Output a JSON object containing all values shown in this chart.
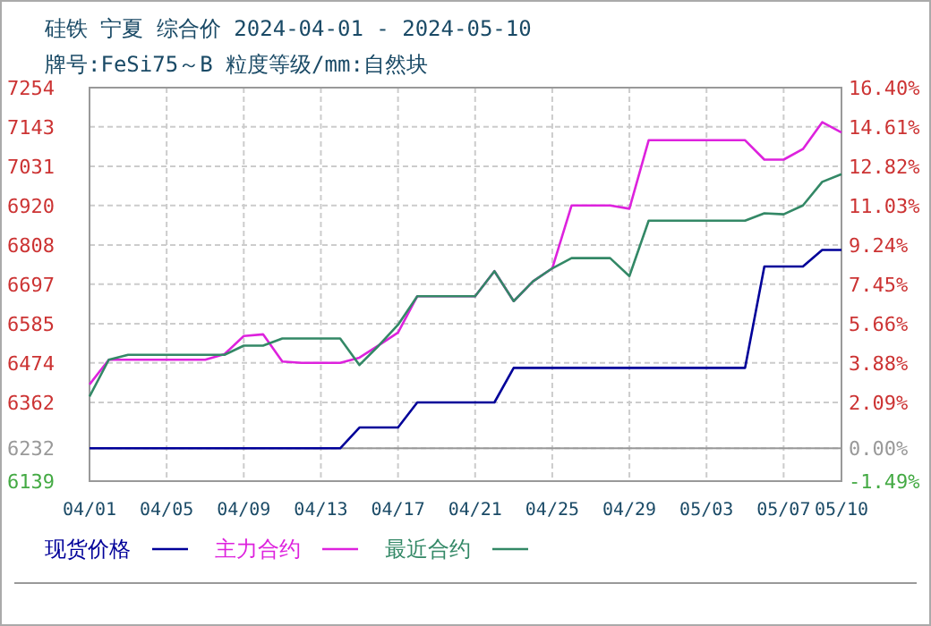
{
  "chart_data": {
    "type": "line",
    "title": "硅铁 宁夏 综合价 2024-04-01 - 2024-05-10",
    "subtitle": "牌号:FeSi75～B 粒度等级/mm:自然块",
    "xlim": [
      "2024-04-01",
      "2024-05-10"
    ],
    "xticks": [
      {
        "value": "2024-04-01",
        "label": "04/01"
      },
      {
        "value": "2024-04-05",
        "label": "04/05"
      },
      {
        "value": "2024-04-09",
        "label": "04/09"
      },
      {
        "value": "2024-04-13",
        "label": "04/13"
      },
      {
        "value": "2024-04-17",
        "label": "04/17"
      },
      {
        "value": "2024-04-21",
        "label": "04/21"
      },
      {
        "value": "2024-04-25",
        "label": "04/25"
      },
      {
        "value": "2024-04-29",
        "label": "04/29"
      },
      {
        "value": "2024-05-03",
        "label": "05/03"
      },
      {
        "value": "2024-05-07",
        "label": "05/07"
      },
      {
        "value": "2024-05-10",
        "label": "05/10"
      }
    ],
    "ylim": [
      6139,
      7254
    ],
    "yticks": [
      6139,
      6232,
      6362,
      6474,
      6585,
      6697,
      6808,
      6920,
      7031,
      7143,
      7254
    ],
    "y2lim": [
      -1.49,
      16.4
    ],
    "y2ticks": [
      {
        "value": -1.49,
        "label": "-1.49%"
      },
      {
        "value": 0,
        "label": "0.00%"
      },
      {
        "value": 2.09,
        "label": "2.09%"
      },
      {
        "value": 3.88,
        "label": "3.88%"
      },
      {
        "value": 5.66,
        "label": "5.66%"
      },
      {
        "value": 7.45,
        "label": "7.45%"
      },
      {
        "value": 9.24,
        "label": "9.24%"
      },
      {
        "value": 11.03,
        "label": "11.03%"
      },
      {
        "value": 12.82,
        "label": "12.82%"
      },
      {
        "value": 14.61,
        "label": "14.61%"
      },
      {
        "value": 16.4,
        "label": "16.40%"
      }
    ],
    "ref_lines": [
      {
        "axis": "y",
        "value": 6232,
        "color": "#999999"
      }
    ],
    "grid": true,
    "legend": "bottom",
    "marker": "none",
    "line_style": "solid",
    "series": [
      {
        "name": "现货价格",
        "color": "#000099",
        "x": [
          "2024-04-01",
          "2024-04-14",
          "2024-04-15",
          "2024-04-17",
          "2024-04-18",
          "2024-04-22",
          "2024-04-23",
          "2024-05-05",
          "2024-05-06",
          "2024-05-08",
          "2024-05-09",
          "2024-05-10"
        ],
        "values": [
          6232,
          6232,
          6291,
          6291,
          6362,
          6362,
          6460,
          6460,
          6747,
          6747,
          6794,
          6794
        ]
      },
      {
        "name": "主力合约",
        "color": "#dd22dd",
        "x": [
          "2024-04-01",
          "2024-04-02",
          "2024-04-07",
          "2024-04-08",
          "2024-04-09",
          "2024-04-10",
          "2024-04-11",
          "2024-04-12",
          "2024-04-14",
          "2024-04-15",
          "2024-04-16",
          "2024-04-17",
          "2024-04-18",
          "2024-04-21",
          "2024-04-22",
          "2024-04-23",
          "2024-04-24",
          "2024-04-25",
          "2024-04-26",
          "2024-04-28",
          "2024-04-29",
          "2024-04-30",
          "2024-05-05",
          "2024-05-06",
          "2024-05-07",
          "2024-05-08",
          "2024-05-09",
          "2024-05-10"
        ],
        "values": [
          6413,
          6483,
          6483,
          6499,
          6550,
          6555,
          6478,
          6474,
          6474,
          6489,
          6524,
          6560,
          6663,
          6663,
          6734,
          6649,
          6705,
          6742,
          6920,
          6920,
          6911,
          7105,
          7105,
          7050,
          7050,
          7080,
          7156,
          7127
        ]
      },
      {
        "name": "最近合约",
        "color": "#338866",
        "x": [
          "2024-04-01",
          "2024-04-02",
          "2024-04-03",
          "2024-04-08",
          "2024-04-09",
          "2024-04-10",
          "2024-04-11",
          "2024-04-14",
          "2024-04-15",
          "2024-04-16",
          "2024-04-17",
          "2024-04-18",
          "2024-04-21",
          "2024-04-22",
          "2024-04-23",
          "2024-04-24",
          "2024-04-25",
          "2024-04-26",
          "2024-04-28",
          "2024-04-29",
          "2024-04-30",
          "2024-05-05",
          "2024-05-06",
          "2024-05-07",
          "2024-05-08",
          "2024-05-09",
          "2024-05-10"
        ],
        "values": [
          6379,
          6483,
          6497,
          6497,
          6523,
          6523,
          6543,
          6543,
          6468,
          6523,
          6582,
          6663,
          6663,
          6734,
          6649,
          6705,
          6742,
          6771,
          6771,
          6720,
          6877,
          6877,
          6898,
          6895,
          6920,
          6987,
          7009
        ]
      }
    ]
  }
}
